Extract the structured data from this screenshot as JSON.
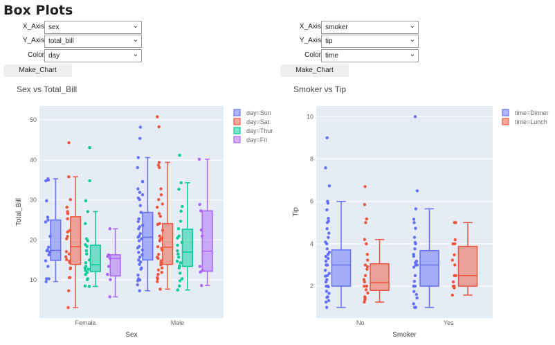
{
  "header": {
    "title": "Box Plots"
  },
  "panels": [
    {
      "controls": [
        {
          "label": "X_Axis",
          "value": "sex"
        },
        {
          "label": "Y_Axis",
          "value": "total_bill"
        },
        {
          "label": "Color",
          "value": "day"
        }
      ],
      "button": "Make_Chart"
    },
    {
      "controls": [
        {
          "label": "X_Axis",
          "value": "smoker"
        },
        {
          "label": "Y_Axis",
          "value": "tip"
        },
        {
          "label": "Color",
          "value": "time"
        }
      ],
      "button": "Make_Chart"
    }
  ],
  "chart_data": [
    {
      "type": "box",
      "title": "Sex vs Total_Bill",
      "xlabel": "Sex",
      "ylabel": "Total_Bill",
      "ylim": [
        0.5,
        53.5
      ],
      "yticks": [
        10,
        20,
        30,
        40,
        50
      ],
      "grid": true,
      "legend": "top-right",
      "categories": [
        "Female",
        "Male"
      ],
      "series": [
        {
          "name": "day=Sun",
          "color": "#636efa",
          "boxes": [
            {
              "min": 9.6,
              "q1": 14.9,
              "median": 17.4,
              "q3": 25.0,
              "max": 35.3,
              "points": [
                35.3,
                35.0,
                34.8,
                29.8,
                25.7,
                25.0,
                24.5,
                20.9,
                18.2,
                17.5,
                17.3,
                17.0,
                16.3,
                14.8,
                13.4,
                10.3,
                10.3,
                9.6
              ]
            },
            {
              "min": 7.3,
              "q1": 15.0,
              "median": 20.7,
              "q3": 26.9,
              "max": 40.6,
              "points": [
                48.2,
                45.4,
                40.6,
                38.1,
                34.6,
                34.6,
                32.8,
                31.9,
                31.3,
                30.5,
                30.1,
                28.6,
                26.9,
                25.3,
                24.6,
                23.7,
                23.3,
                22.8,
                21.6,
                21.0,
                20.7,
                20.3,
                19.8,
                18.4,
                18.0,
                17.5,
                16.9,
                16.3,
                15.7,
                15.0,
                14.5,
                13.9,
                13.0,
                12.7,
                11.2,
                10.3,
                10.0,
                9.8,
                8.8,
                7.3
              ]
            }
          ]
        },
        {
          "name": "day=Sat",
          "color": "#EF553B",
          "boxes": [
            {
              "min": 3.1,
              "q1": 13.9,
              "median": 18.3,
              "q3": 25.8,
              "max": 35.8,
              "points": [
                44.3,
                35.8,
                30.1,
                28.2,
                27.1,
                26.6,
                25.3,
                22.4,
                22.0,
                20.9,
                20.3,
                17.1,
                16.5,
                15.8,
                15.1,
                14.7,
                14.3,
                13.0,
                12.8,
                10.6,
                10.6,
                7.3,
                3.1
              ]
            },
            {
              "min": 7.7,
              "q1": 13.9,
              "median": 18.2,
              "q3": 24.1,
              "max": 39.4,
              "points": [
                50.8,
                48.3,
                39.4,
                38.7,
                38.1,
                32.8,
                31.3,
                30.1,
                29.0,
                28.2,
                26.6,
                25.9,
                24.1,
                23.9,
                22.4,
                21.0,
                20.5,
                20.2,
                19.8,
                18.3,
                17.9,
                17.5,
                16.4,
                15.7,
                15.4,
                14.8,
                14.3,
                13.8,
                13.0,
                12.5,
                11.9,
                11.4,
                10.6,
                10.3,
                9.6,
                7.7
              ]
            }
          ]
        },
        {
          "name": "day=Thur",
          "color": "#00cc96",
          "boxes": [
            {
              "min": 8.4,
              "q1": 12.1,
              "median": 13.8,
              "q3": 18.7,
              "max": 27.1,
              "points": [
                43.1,
                34.8,
                29.8,
                27.1,
                24.1,
                20.3,
                19.8,
                18.8,
                18.4,
                17.3,
                16.5,
                15.0,
                14.3,
                13.4,
                13.0,
                12.7,
                12.4,
                11.9,
                11.4,
                10.3,
                10.1,
                8.5,
                8.4
              ]
            },
            {
              "min": 7.5,
              "q1": 13.4,
              "median": 17.0,
              "q3": 22.7,
              "max": 34.3,
              "points": [
                41.2,
                34.3,
                32.7,
                28.4,
                27.2,
                24.7,
                22.8,
                21.0,
                20.5,
                19.4,
                18.7,
                17.3,
                16.5,
                15.7,
                14.7,
                14.3,
                13.5,
                13.0,
                11.7,
                10.3,
                9.8,
                8.5,
                7.5
              ]
            }
          ]
        },
        {
          "name": "day=Fri",
          "color": "#ab63fa",
          "boxes": [
            {
              "min": 5.8,
              "q1": 11.0,
              "median": 15.4,
              "q3": 16.3,
              "max": 22.8,
              "points": [
                22.8,
                16.3,
                15.9,
                15.4,
                13.4,
                11.4,
                10.1,
                5.8
              ]
            },
            {
              "min": 8.6,
              "q1": 12.2,
              "median": 17.2,
              "q3": 27.3,
              "max": 40.2,
              "points": [
                40.2,
                28.9,
                27.3,
                22.5,
                21.0,
                13.4,
                12.4,
                12.0,
                8.6
              ]
            }
          ]
        }
      ]
    },
    {
      "type": "box",
      "title": "Smoker vs Tip",
      "xlabel": "Smoker",
      "ylabel": "Tip",
      "ylim": [
        0.5,
        10.5
      ],
      "yticks": [
        2,
        4,
        6,
        8,
        10
      ],
      "grid": true,
      "legend": "top-right",
      "categories": [
        "No",
        "Yes"
      ],
      "series": [
        {
          "name": "time=Dinner",
          "color": "#636efa",
          "boxes": [
            {
              "min": 1.0,
              "q1": 2.0,
              "median": 3.0,
              "q3": 3.71,
              "max": 6.0,
              "points": [
                9.0,
                7.58,
                6.73,
                6.0,
                5.92,
                5.6,
                5.2,
                5.07,
                5.0,
                4.71,
                4.5,
                4.3,
                4.08,
                4.0,
                3.76,
                3.6,
                3.5,
                3.4,
                3.31,
                3.18,
                3.0,
                3.0,
                3.0,
                2.75,
                2.6,
                2.5,
                2.47,
                2.31,
                2.2,
                2.0,
                2.0,
                1.97,
                1.76,
                1.66,
                1.5,
                1.47,
                1.32,
                1.25,
                1.0
              ]
            },
            {
              "min": 1.0,
              "q1": 2.0,
              "median": 3.0,
              "q3": 3.68,
              "max": 5.65,
              "points": [
                10.0,
                6.5,
                5.65,
                5.16,
                5.0,
                4.73,
                4.3,
                4.06,
                4.0,
                3.76,
                3.5,
                3.41,
                3.18,
                3.11,
                3.0,
                3.0,
                2.9,
                2.5,
                2.23,
                2.0,
                2.0,
                1.75,
                1.61,
                1.44,
                1.17,
                1.0,
                1.0
              ]
            }
          ]
        },
        {
          "name": "time=Lunch",
          "color": "#EF553B",
          "boxes": [
            {
              "min": 1.25,
              "q1": 1.8,
              "median": 2.17,
              "q3": 3.06,
              "max": 4.2,
              "points": [
                6.7,
                5.85,
                5.17,
                5.0,
                4.2,
                4.0,
                3.5,
                3.23,
                3.0,
                2.92,
                2.8,
                2.5,
                2.31,
                2.2,
                2.0,
                2.0,
                1.83,
                1.68,
                1.5,
                1.44,
                1.36,
                1.25
              ]
            },
            {
              "min": 1.58,
              "q1": 2.0,
              "median": 2.5,
              "q3": 3.88,
              "max": 5.0,
              "points": [
                5.0,
                5.0,
                4.19,
                4.0,
                4.0,
                3.48,
                3.23,
                3.0,
                2.5,
                2.5,
                2.2,
                2.0,
                2.0,
                1.92,
                1.58
              ]
            }
          ]
        }
      ]
    }
  ]
}
